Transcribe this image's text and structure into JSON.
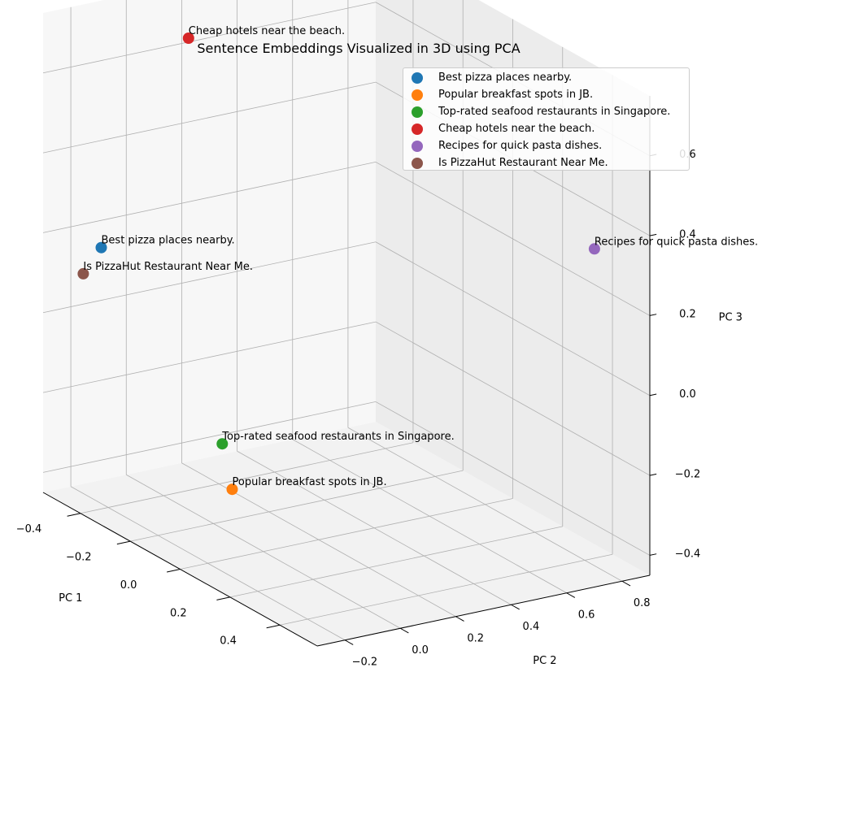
{
  "chart_data": {
    "type": "scatter",
    "title": "Sentence Embeddings Visualized in 3D using PCA",
    "xlabel": "PC 1",
    "ylabel": "PC 2",
    "zlabel": "PC 3",
    "xlim": [
      -0.55,
      0.55
    ],
    "ylim": [
      -0.3,
      0.9
    ],
    "zlim": [
      -0.45,
      0.75
    ],
    "x_ticks": [
      "−0.4",
      "−0.2",
      "0.0",
      "0.2",
      "0.4"
    ],
    "y_ticks": [
      "−0.2",
      "0.0",
      "0.2",
      "0.4",
      "0.6",
      "0.8"
    ],
    "z_ticks": [
      "−0.4",
      "−0.2",
      "0.0",
      "0.2",
      "0.4",
      "0.6"
    ],
    "x_tick_values": [
      -0.4,
      -0.2,
      0.0,
      0.2,
      0.4
    ],
    "y_tick_values": [
      -0.2,
      0.0,
      0.2,
      0.4,
      0.6,
      0.8
    ],
    "z_tick_values": [
      -0.4,
      -0.2,
      0.0,
      0.2,
      0.4,
      0.6
    ],
    "grid": true,
    "legend_position": "top-right",
    "series": [
      {
        "name": "Best pizza places nearby.",
        "label": "Best pizza places nearby.",
        "color": "#1f77b4",
        "x": -0.45,
        "y": -0.18,
        "z": 0.18
      },
      {
        "name": "Popular breakfast spots in JB.",
        "label": "Popular breakfast spots in JB.",
        "color": "#ff7f0e",
        "x": 0.12,
        "y": -0.22,
        "z": -0.22
      },
      {
        "name": "Top-rated seafood restaurants in Singapore.",
        "label": "Top-rated seafood restaurants in Singapore.",
        "color": "#2ca02c",
        "x": 0.08,
        "y": -0.22,
        "z": -0.12
      },
      {
        "name": "Cheap hotels near the beach.",
        "label": "Cheap hotels near the beach.",
        "color": "#d62728",
        "x": -0.3,
        "y": 0.0,
        "z": 0.73
      },
      {
        "name": "Recipes for quick pasta dishes.",
        "label": "Recipes for quick pasta dishes.",
        "color": "#9467bd",
        "x": 0.35,
        "y": 0.88,
        "z": 0.3
      },
      {
        "name": "Is PizzaHut Restaurant Near Me.",
        "label": "Is PizzaHut Restaurant Near Me.",
        "color": "#8c564b",
        "x": -0.5,
        "y": -0.2,
        "z": 0.1
      }
    ]
  }
}
